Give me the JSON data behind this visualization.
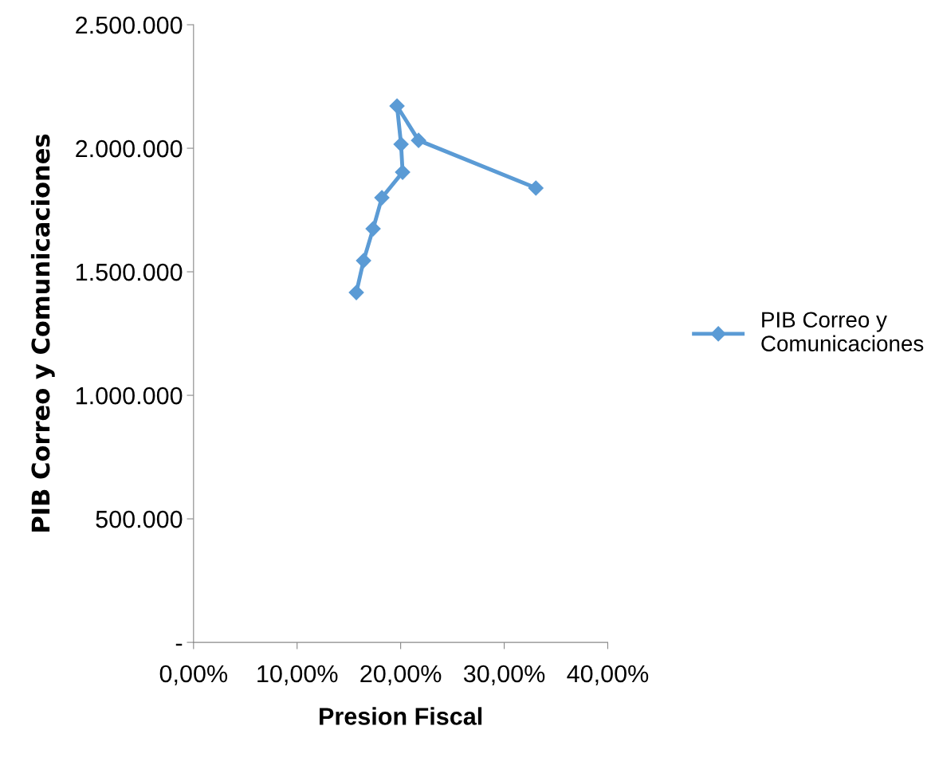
{
  "chart_data": {
    "type": "line",
    "xlabel": "Presion Fiscal",
    "ylabel": "PIB Correo y Comunicaciones",
    "x": [
      15.72,
      16.42,
      17.34,
      18.19,
      20.19,
      20.04,
      19.65,
      21.73,
      33.06
    ],
    "series": [
      {
        "name": "PIB Correo y Comunicaciones",
        "color": "#5b9bd5",
        "values": [
          1416000,
          1545000,
          1674000,
          1800000,
          1903000,
          2016000,
          2171000,
          2032000,
          1839000
        ]
      }
    ],
    "xlim": [
      0,
      40
    ],
    "xticks": [
      {
        "value": 0,
        "label": "0,00%"
      },
      {
        "value": 10,
        "label": "10,00%"
      },
      {
        "value": 20,
        "label": "20,00%"
      },
      {
        "value": 30,
        "label": "30,00%"
      },
      {
        "value": 40,
        "label": "40,00%"
      }
    ],
    "ylim": [
      0,
      2500000
    ],
    "yticks": [
      {
        "value": 0,
        "label": "-"
      },
      {
        "value": 500000,
        "label": "500.000"
      },
      {
        "value": 1000000,
        "label": "1.000.000"
      },
      {
        "value": 1500000,
        "label": "1.500.000"
      },
      {
        "value": 2000000,
        "label": "2.000.000"
      },
      {
        "value": 2500000,
        "label": "2.500.000"
      }
    ],
    "marker": "diamond",
    "line_style": "solid",
    "grid": false,
    "legend": "right"
  }
}
